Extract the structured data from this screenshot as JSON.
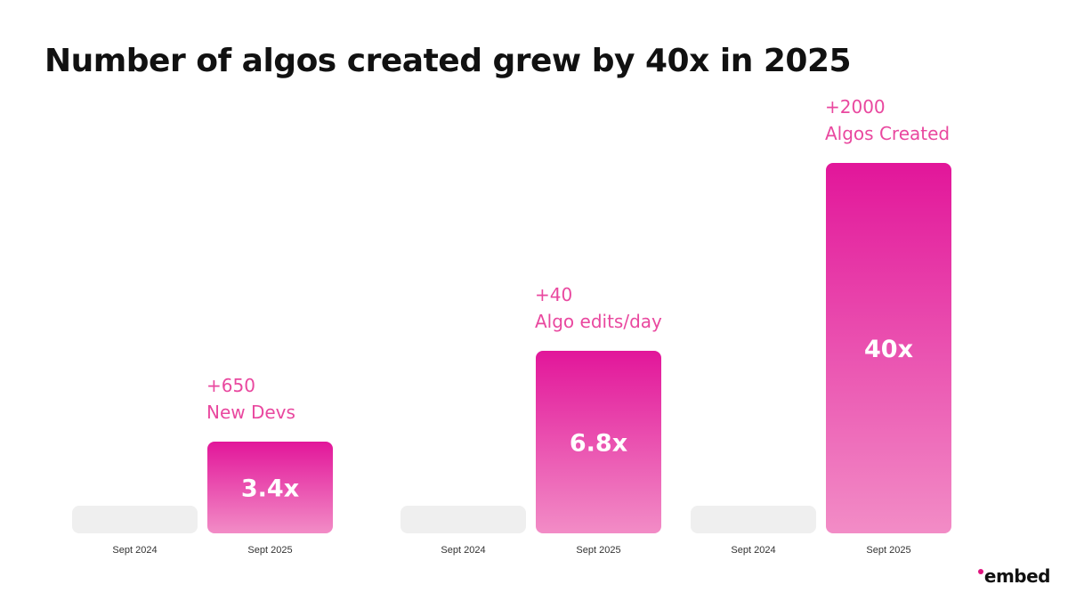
{
  "chart_data": {
    "type": "bar",
    "title": "Number of algos created grew by 40x in 2025",
    "groups": [
      {
        "annotation": [
          "+650",
          "New Devs"
        ],
        "bars": [
          {
            "label": "Sept 2024",
            "value": 1.0,
            "display": ""
          },
          {
            "label": "Sept 2025",
            "value": 3.4,
            "display": "3.4x"
          }
        ]
      },
      {
        "annotation": [
          "+40",
          "Algo edits/day"
        ],
        "bars": [
          {
            "label": "Sept 2024",
            "value": 1.0,
            "display": ""
          },
          {
            "label": "Sept 2025",
            "value": 6.8,
            "display": "6.8x"
          }
        ]
      },
      {
        "annotation": [
          "+2000",
          "Algos Created"
        ],
        "bars": [
          {
            "label": "Sept 2024",
            "value": 1.0,
            "display": ""
          },
          {
            "label": "Sept 2025",
            "value": 40,
            "display": "40x"
          }
        ]
      }
    ]
  },
  "colors": {
    "baseline_bar": "#efefef",
    "bar_top": "#e2169a",
    "bar_bottom": "#f28cc6",
    "annotation": "#e9489f",
    "bar_value_text": "#ffffff",
    "tick_text": "#333333",
    "logo_dot": "#e0157f"
  },
  "logo": {
    "text": "embed"
  }
}
